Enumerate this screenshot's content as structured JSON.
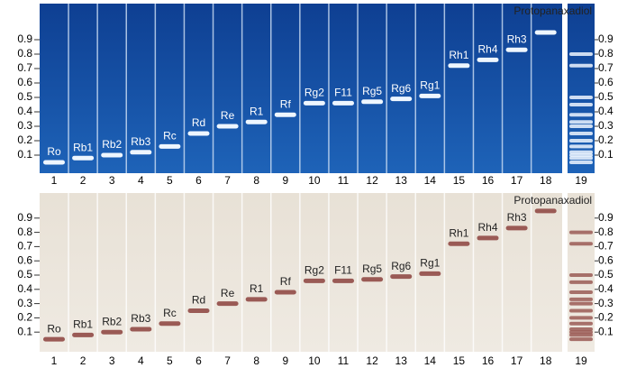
{
  "rf_ticks": [
    0.1,
    0.2,
    0.3,
    0.4,
    0.5,
    0.6,
    0.7,
    0.8,
    0.9
  ],
  "lanes": [
    {
      "number": 1,
      "compound": "Ro",
      "rf": 0.05
    },
    {
      "number": 2,
      "compound": "Rb1",
      "rf": 0.08
    },
    {
      "number": 3,
      "compound": "Rb2",
      "rf": 0.1
    },
    {
      "number": 4,
      "compound": "Rb3",
      "rf": 0.12
    },
    {
      "number": 5,
      "compound": "Rc",
      "rf": 0.16
    },
    {
      "number": 6,
      "compound": "Rd",
      "rf": 0.25
    },
    {
      "number": 7,
      "compound": "Re",
      "rf": 0.3
    },
    {
      "number": 8,
      "compound": "R1",
      "rf": 0.33
    },
    {
      "number": 9,
      "compound": "Rf",
      "rf": 0.38
    },
    {
      "number": 10,
      "compound": "Rg2",
      "rf": 0.46
    },
    {
      "number": 11,
      "compound": "F11",
      "rf": 0.46
    },
    {
      "number": 12,
      "compound": "Rg5",
      "rf": 0.47
    },
    {
      "number": 13,
      "compound": "Rg6",
      "rf": 0.49
    },
    {
      "number": 14,
      "compound": "Rg1",
      "rf": 0.51
    },
    {
      "number": 15,
      "compound": "Rh1",
      "rf": 0.72
    },
    {
      "number": 16,
      "compound": "Rh4",
      "rf": 0.76
    },
    {
      "number": 17,
      "compound": "Rh3",
      "rf": 0.83
    },
    {
      "number": 18,
      "compound": "Protopanaxadiol",
      "rf": 0.95
    },
    {
      "number": 19,
      "rf": [
        0.05,
        0.08,
        0.1,
        0.12,
        0.16,
        0.2,
        0.25,
        0.3,
        0.33,
        0.38,
        0.45,
        0.5,
        0.72,
        0.8
      ]
    }
  ]
}
